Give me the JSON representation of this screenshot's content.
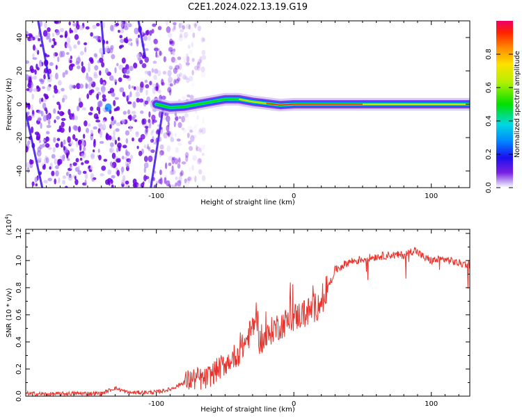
{
  "title": "C2E1.2024.022.13.19.G19",
  "colors": {
    "snr_line": "#e8322b",
    "frame": "#000000",
    "spectrogram_background": "#ffffff",
    "spectrogram_noise": "#7a1fe0",
    "colormap": [
      "#ffffff",
      "#b99af2",
      "#6a00e0",
      "#0022ee",
      "#00aaff",
      "#00e6c8",
      "#00e000",
      "#b8f000",
      "#ffff00",
      "#ff9900",
      "#ff2200",
      "#ee0066"
    ]
  },
  "chart_data": [
    {
      "type": "heatmap",
      "title": "C2E1.2024.022.13.19.G19",
      "xlabel": "Height of straight line (km)",
      "ylabel": "Frequency (Hz)",
      "xlim": [
        -195,
        128
      ],
      "ylim": [
        -50,
        50
      ],
      "x_ticks": [
        -100,
        0,
        100
      ],
      "y_ticks": [
        -40,
        -20,
        0,
        20,
        40
      ],
      "colorbar": {
        "label": "Normalized spectral amplitude",
        "range": [
          0,
          1
        ],
        "ticks": [
          "0.0",
          "0.2",
          "0.4",
          "0.6",
          "0.8"
        ]
      },
      "description_values": {
        "signal_frequency_hz": 0,
        "signal_track": [
          {
            "x": -100,
            "y": 0.0
          },
          {
            "x": -90,
            "y": -2.0
          },
          {
            "x": -80,
            "y": -1.5
          },
          {
            "x": -70,
            "y": 0.0
          },
          {
            "x": -60,
            "y": 1.5
          },
          {
            "x": -50,
            "y": 3.0
          },
          {
            "x": -40,
            "y": 3.0
          },
          {
            "x": -30,
            "y": 1.5
          },
          {
            "x": -20,
            "y": 0.5
          },
          {
            "x": -10,
            "y": -0.5
          },
          {
            "x": 0,
            "y": 0.0
          },
          {
            "x": 50,
            "y": 0.0
          },
          {
            "x": 100,
            "y": 0.0
          },
          {
            "x": 128,
            "y": 0.0
          }
        ],
        "noise_region_x": [
          -195,
          -65
        ]
      }
    },
    {
      "type": "line",
      "xlabel": "Height of straight line (km)",
      "ylabel": "SNR (10 * v/v)",
      "y_scale_note": "(x10^4)",
      "xlim": [
        -195,
        128
      ],
      "ylim": [
        0,
        1.23
      ],
      "x_ticks": [
        -100,
        0,
        100
      ],
      "y_ticks": [
        "0.0",
        "0.2",
        "0.4",
        "0.6",
        "0.8",
        "1.0",
        "1.2"
      ],
      "series": [
        {
          "values_x": [
            -195,
            -180,
            -160,
            -140,
            -130,
            -120,
            -100,
            -90,
            -80,
            -75,
            -70,
            -65,
            -60,
            -55,
            -50,
            -45,
            -40,
            -35,
            -30,
            -27,
            -25,
            -20,
            -15,
            -10,
            -5,
            0,
            5,
            10,
            15,
            20,
            25,
            30,
            40,
            50,
            60,
            70,
            80,
            88,
            90,
            95,
            100,
            110,
            120,
            128
          ],
          "values_y": [
            0.02,
            0.015,
            0.02,
            0.02,
            0.06,
            0.025,
            0.03,
            0.05,
            0.1,
            0.12,
            0.13,
            0.12,
            0.16,
            0.2,
            0.24,
            0.28,
            0.32,
            0.4,
            0.5,
            0.62,
            0.4,
            0.42,
            0.5,
            0.52,
            0.55,
            0.58,
            0.6,
            0.62,
            0.65,
            0.7,
            0.8,
            0.93,
            0.99,
            1.01,
            1.03,
            1.04,
            1.04,
            1.08,
            1.06,
            1.02,
            1.0,
            1.01,
            0.98,
            0.97
          ]
        }
      ]
    }
  ]
}
